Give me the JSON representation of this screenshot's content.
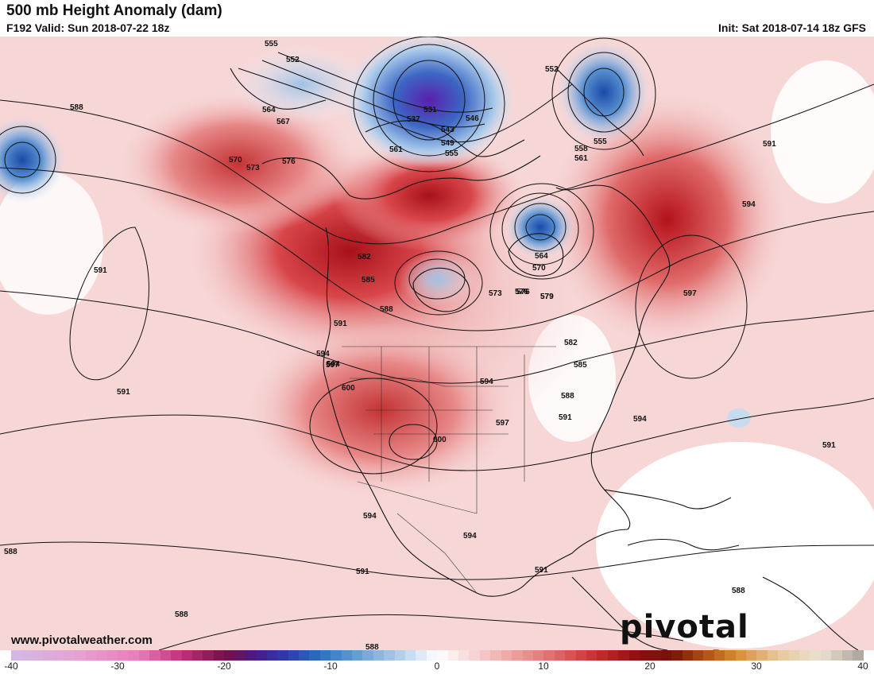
{
  "header": {
    "title": "500 mb Height Anomaly (dam)",
    "valid": "F192 Valid: Sun 2018-07-22 18z",
    "init": "Init: Sat 2018-07-14 18z GFS"
  },
  "branding": {
    "url": "www.pivotalweather.com",
    "logo_text": "pivotal weather"
  },
  "map": {
    "projection": "north-america",
    "colors": {
      "strong_positive": "#b4161f",
      "positive": "#e6787a",
      "weak_positive": "#f6d2d2",
      "neutral": "#ffffff",
      "weak_negative": "#c8dcef",
      "negative": "#3a73c2",
      "strong_negative": "#5b2ab5"
    },
    "contour_labels": [
      "555",
      "552",
      "588",
      "564",
      "567",
      "570",
      "573",
      "576",
      "561",
      "531",
      "537",
      "543",
      "549",
      "555",
      "546",
      "552",
      "558",
      "561",
      "555",
      "591",
      "594",
      "564",
      "570",
      "579",
      "576",
      "582",
      "585",
      "588",
      "591",
      "594",
      "597",
      "600",
      "573",
      "576",
      "579",
      "582",
      "585",
      "588",
      "591",
      "594",
      "597",
      "600",
      "594",
      "597",
      "591",
      "594",
      "588",
      "591",
      "591",
      "594",
      "594",
      "588",
      "591",
      "588",
      "588",
      "591"
    ]
  },
  "colorbar": {
    "ticks": [
      "-40",
      "-30",
      "-20",
      "-10",
      "0",
      "10",
      "20",
      "30",
      "40"
    ],
    "min": -40,
    "max": 40,
    "step": 1,
    "stops": [
      {
        "v": -40,
        "c": "#d2b9e6"
      },
      {
        "v": -34,
        "c": "#e5a3d3"
      },
      {
        "v": -28,
        "c": "#ec7bb9"
      },
      {
        "v": -24,
        "c": "#c2307d"
      },
      {
        "v": -20,
        "c": "#7a0f47"
      },
      {
        "v": -17,
        "c": "#4a1a8a"
      },
      {
        "v": -14,
        "c": "#2a3fb0"
      },
      {
        "v": -11,
        "c": "#2d6fc0"
      },
      {
        "v": -7,
        "c": "#6fa4d8"
      },
      {
        "v": -3,
        "c": "#bcd6ee"
      },
      {
        "v": 0,
        "c": "#ffffff"
      },
      {
        "v": 3,
        "c": "#f8dada"
      },
      {
        "v": 7,
        "c": "#efa3a3"
      },
      {
        "v": 11,
        "c": "#e26a6a"
      },
      {
        "v": 15,
        "c": "#c92d2d"
      },
      {
        "v": 19,
        "c": "#8c0d0d"
      },
      {
        "v": 22,
        "c": "#7a1208"
      },
      {
        "v": 25,
        "c": "#b24a12"
      },
      {
        "v": 28,
        "c": "#d98a2e"
      },
      {
        "v": 32,
        "c": "#e8c89a"
      },
      {
        "v": 36,
        "c": "#e9e1cf"
      },
      {
        "v": 40,
        "c": "#a9a19b"
      }
    ]
  }
}
